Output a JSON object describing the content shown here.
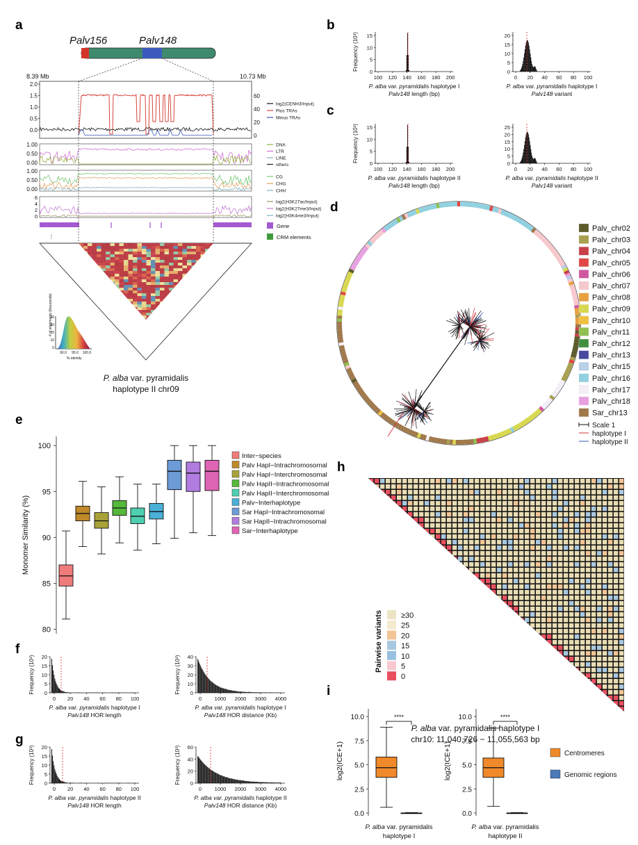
{
  "panel_labels": {
    "a": "a",
    "b": "b",
    "c": "c",
    "d": "d",
    "e": "e",
    "f": "f",
    "g": "g",
    "h": "h",
    "i": "i"
  },
  "panel_a": {
    "gene1": "Palv156",
    "gene2": "Palv148",
    "coord_left": "8.39 Mb",
    "coord_right": "10.73 Mb",
    "track1_left_ticks": [
      "2.0",
      "1.5",
      "1.0",
      "0.5",
      "0.0"
    ],
    "track1_right_ticks": [
      "60",
      "40",
      "20",
      "0"
    ],
    "track1_legend": [
      "log2(CENH3/Input)",
      "Plus TRAs",
      "Minus TRAs"
    ],
    "track2_ticks": [
      "1.00",
      "0.50",
      "0.00"
    ],
    "track2_legend": [
      "DNA",
      "LTR",
      "LINE",
      "others"
    ],
    "track3_ticks": [
      "1.00",
      "0.50",
      "0.00"
    ],
    "track3_legend": [
      "CG",
      "CHG",
      "CHH"
    ],
    "track4_ticks": [
      "6",
      "4",
      "2",
      "0"
    ],
    "track4_legend": [
      "log2(H3K27ac/Input)",
      "log2(H3K27me3/Input)",
      "log2(H3K4me3/Input)"
    ],
    "gene_legend": "Gene",
    "crm_legend": "CRM elements",
    "inset_ylabel": "# of alignments (thousands)",
    "inset_xlabel": "% identity",
    "inset_yticks": [
      "40",
      "30",
      "20",
      "10",
      "0"
    ],
    "inset_xticks": [
      "90.0",
      "95.0",
      "100.0"
    ],
    "caption_line1_italic": "P. alba",
    "caption_line1_rest": " var. pyramidalis",
    "caption_line2": "haplotype II chr09"
  },
  "panel_b": {
    "ylabel": "Frequency (10³)",
    "left": {
      "xticks": [
        "100",
        "120",
        "140",
        "160",
        "180",
        "200"
      ],
      "yticks": [
        "15",
        "10",
        "5",
        "0"
      ],
      "title_italic": "P. alba",
      "title_mid": " var. ",
      "title_italic2": "pyramidalis",
      "title_rest": " haplotype I",
      "xlabel_italic": "Palv148",
      "xlabel_rest": " length (bp)"
    },
    "right": {
      "xticks": [
        "0",
        "20",
        "40",
        "60",
        "80",
        "100"
      ],
      "yticks": [
        "20",
        "15",
        "10",
        "5",
        "0"
      ],
      "title_italic": "P. alba",
      "title_mid": " var. ",
      "title_italic2": "pyramidalis",
      "title_rest": " haplotype I",
      "xlabel_italic": "Palv148",
      "xlabel_rest": " variant"
    }
  },
  "panel_c": {
    "ylabel": "Frequency (10³)",
    "left": {
      "xticks": [
        "100",
        "120",
        "140",
        "160",
        "180",
        "200"
      ],
      "yticks": [
        "15",
        "10",
        "5",
        "0"
      ],
      "title_italic": "P. alba",
      "title_mid": " var. ",
      "title_italic2": "pyramidalis",
      "title_rest": " haplotype II",
      "xlabel_italic": "Palv148",
      "xlabel_rest": " length (bp)"
    },
    "right": {
      "xticks": [
        "0",
        "20",
        "40",
        "60",
        "80",
        "100"
      ],
      "yticks": [
        "25",
        "20",
        "15",
        "10",
        "5",
        "0"
      ],
      "title_italic": "P. alba",
      "title_mid": " var. ",
      "title_italic2": "pyramidalis",
      "title_rest": " haplotype II",
      "xlabel_italic": "Palv148",
      "xlabel_rest": " variant"
    }
  },
  "panel_d": {
    "legend": [
      {
        "label": "Palv_chr02",
        "color": "#5b5a2a"
      },
      {
        "label": "Palv_chr03",
        "color": "#a8a050"
      },
      {
        "label": "Palv_chr04",
        "color": "#c8404a"
      },
      {
        "label": "Palv_chr05",
        "color": "#e04848"
      },
      {
        "label": "Palv_chr06",
        "color": "#d058a0"
      },
      {
        "label": "Palv_chr07",
        "color": "#f6c8cc"
      },
      {
        "label": "Palv_chr08",
        "color": "#e8a040"
      },
      {
        "label": "Palv_chr09",
        "color": "#d8d850"
      },
      {
        "label": "Palv_chr10",
        "color": "#f0c040"
      },
      {
        "label": "Palv_chr11",
        "color": "#90c050"
      },
      {
        "label": "Palv_chr12",
        "color": "#409040"
      },
      {
        "label": "Palv_chr13",
        "color": "#4848a0"
      },
      {
        "label": "Palv_chr15",
        "color": "#b8d0e8"
      },
      {
        "label": "Palv_chr16",
        "color": "#90d0e0"
      },
      {
        "label": "Palv_chr17",
        "color": "#f4eef8"
      },
      {
        "label": "Palv_chr18",
        "color": "#e8a0e0"
      },
      {
        "label": "Sar_chr13",
        "color": "#a0784a"
      }
    ],
    "scale_label": "Scale 1",
    "hap1_label": "haplotype I",
    "hap2_label": "haplotype II"
  },
  "panel_e": {
    "ylabel": "Monomer Similarity (%)",
    "yticks": [
      "100",
      "95",
      "90",
      "85",
      "80"
    ],
    "ylim": [
      79.5,
      101
    ],
    "legend": [
      "Inter−species",
      "Palv HapI−Intrachromosomal",
      "Palv HapI−Interchromosomal",
      "Palv HapII−Intrachromosomal",
      "Palv HapII−Interchromosomal",
      "Palv−Interhaplotype",
      "Sar HapI−Intrachromosomal",
      "Sar HapII−Intrachromosomal",
      "Sar−Interhaplotype"
    ]
  },
  "chart_data": [
    {
      "type": "box",
      "panel": "e",
      "ylabel": "Monomer Similarity (%)",
      "ylim": [
        79.5,
        101
      ],
      "boxes": [
        {
          "name": "Inter−species",
          "color": "#ef7b7b",
          "min": 81.1,
          "q1": 84.7,
          "median": 85.8,
          "q3": 87.0,
          "max": 90.7
        },
        {
          "name": "Palv HapI−Intrachromosomal",
          "color": "#c08a2a",
          "min": 89.0,
          "q1": 91.8,
          "median": 92.6,
          "q3": 93.4,
          "max": 96.1
        },
        {
          "name": "Palv HapI−Interchromosomal",
          "color": "#a9a23a",
          "min": 88.2,
          "q1": 91.0,
          "median": 91.8,
          "q3": 92.7,
          "max": 95.5
        },
        {
          "name": "Palv HapII−Intrachromosomal",
          "color": "#55b83a",
          "min": 89.4,
          "q1": 92.4,
          "median": 93.2,
          "q3": 94.0,
          "max": 96.6
        },
        {
          "name": "Palv HapII−Interchromosomal",
          "color": "#4ecfb0",
          "min": 88.6,
          "q1": 91.5,
          "median": 92.3,
          "q3": 93.2,
          "max": 95.8
        },
        {
          "name": "Palv−Interhaplotype",
          "color": "#4ab0d8",
          "min": 89.3,
          "q1": 92.0,
          "median": 92.8,
          "q3": 93.7,
          "max": 95.8
        },
        {
          "name": "Sar HapI−Intrachromosomal",
          "color": "#6c9bd6",
          "min": 89.9,
          "q1": 95.2,
          "median": 97.2,
          "q3": 98.4,
          "max": 100
        },
        {
          "name": "Sar HapII−Intrachromosomal",
          "color": "#b07ce0",
          "min": 90.5,
          "q1": 95.0,
          "median": 97.0,
          "q3": 98.2,
          "max": 100
        },
        {
          "name": "Sar−Interhaplotype",
          "color": "#de64b4",
          "min": 90.2,
          "q1": 95.1,
          "median": 97.2,
          "q3": 98.4,
          "max": 100
        }
      ]
    },
    {
      "type": "box",
      "panel": "i-left",
      "ylabel": "log2(ICE+1)",
      "ylim": [
        0,
        10.8
      ],
      "boxes": [
        {
          "name": "Centromeres",
          "color": "#f0892a",
          "min": 0.6,
          "q1": 3.7,
          "median": 4.7,
          "q3": 5.8,
          "max": 8.9
        },
        {
          "name": "Genomic regions",
          "color": "#4a79b8",
          "min": 0.0,
          "q1": 0.0,
          "median": 0.0,
          "q3": 0.0,
          "max": 0.05
        }
      ]
    },
    {
      "type": "box",
      "panel": "i-right",
      "ylabel": "log2(ICE+1)",
      "ylim": [
        0,
        10.8
      ],
      "boxes": [
        {
          "name": "Centromeres",
          "color": "#f0892a",
          "min": 0.7,
          "q1": 3.7,
          "median": 4.7,
          "q3": 5.7,
          "max": 8.8
        },
        {
          "name": "Genomic regions",
          "color": "#4a79b8",
          "min": 0.0,
          "q1": 0.0,
          "median": 0.0,
          "q3": 0.0,
          "max": 0.05
        }
      ]
    }
  ],
  "panel_f": {
    "left": {
      "ylabel": "Frequency (10³)",
      "yticks": [
        "20",
        "15",
        "10",
        "5",
        "0"
      ],
      "xticks": [
        "0",
        "20",
        "40",
        "60",
        "80",
        "100"
      ],
      "title_italic": "P. alba var. pyramidalis",
      "title_rest": " haplotype I",
      "xlabel_italic": "Palv148",
      "xlabel_rest": " HOR length"
    },
    "right": {
      "ylabel": "Frequency (10³)",
      "yticks": [
        "40",
        "30",
        "20",
        "10",
        "0"
      ],
      "xticks": [
        "0",
        "1000",
        "2000",
        "3000",
        "4000"
      ],
      "title_italic": "P. alba var. pyramidalis",
      "title_rest": " haplotype I",
      "xlabel_italic": "Palv148",
      "xlabel_rest": " HOR distance (Kb)"
    }
  },
  "panel_g": {
    "left": {
      "ylabel": "Frequency (10³)",
      "yticks": [
        "20",
        "15",
        "10",
        "5",
        "0"
      ],
      "xticks": [
        "0",
        "20",
        "40",
        "60",
        "80",
        "100"
      ],
      "title_italic": "P. alba var. pyramidalis",
      "title_rest": " haplotype II",
      "xlabel_italic": "Palv148",
      "xlabel_rest": " HOR length"
    },
    "right": {
      "ylabel": "Frequency (10³)",
      "yticks": [
        "60",
        "40",
        "20",
        "0"
      ],
      "xticks": [
        "0",
        "1000",
        "2000",
        "3000",
        "4000"
      ],
      "title_italic": "P. alba var. pyramidalis",
      "title_rest": " haplotype II",
      "xlabel_italic": "Palv148",
      "xlabel_rest": " HOR distance (Kb)"
    }
  },
  "panel_h": {
    "legend_title": "Pairwise variants",
    "legend": [
      {
        "label": "≥30",
        "color": "#ece4c4"
      },
      {
        "label": "25",
        "color": "#f4ead0"
      },
      {
        "label": "20",
        "color": "#f2c496"
      },
      {
        "label": "15",
        "color": "#a8c8e0"
      },
      {
        "label": "10",
        "color": "#98c0e0"
      },
      {
        "label": "5",
        "color": "#f8c8d0"
      },
      {
        "label": "0",
        "color": "#e85060"
      }
    ],
    "caption_italic": "P. alba",
    "caption_rest": " var. pyramidalis haplotype I",
    "caption_line2": "chr10: 11,040,726 − 11,055,563 bp"
  },
  "panel_i": {
    "ylabel": "log2(ICE+1)",
    "yticks": [
      "10.0",
      "7.5",
      "5.0",
      "2.5",
      "0.0"
    ],
    "sig": "****",
    "left_caption_italic": "P. alba",
    "left_caption_rest": " var. pyramidalis",
    "left_caption_line2": "haplotype I",
    "right_caption_italic": "P. alba",
    "right_caption_rest": " var. pyramidalis",
    "right_caption_line2": "haplotype II",
    "legend": [
      {
        "label": "Centromeres",
        "color": "#f0892a"
      },
      {
        "label": "Genomic regions",
        "color": "#4a79b8"
      }
    ]
  },
  "colors": {
    "chromosome": "#3f8a6e",
    "centromere": "#3c5bbf",
    "plus_tras": "#d6453d",
    "minus_tras": "#3a56b8",
    "gene": "#a45ad0",
    "crm": "#3f9a3c",
    "hist_fill": "#111111",
    "hist_median": "#e0403a"
  }
}
